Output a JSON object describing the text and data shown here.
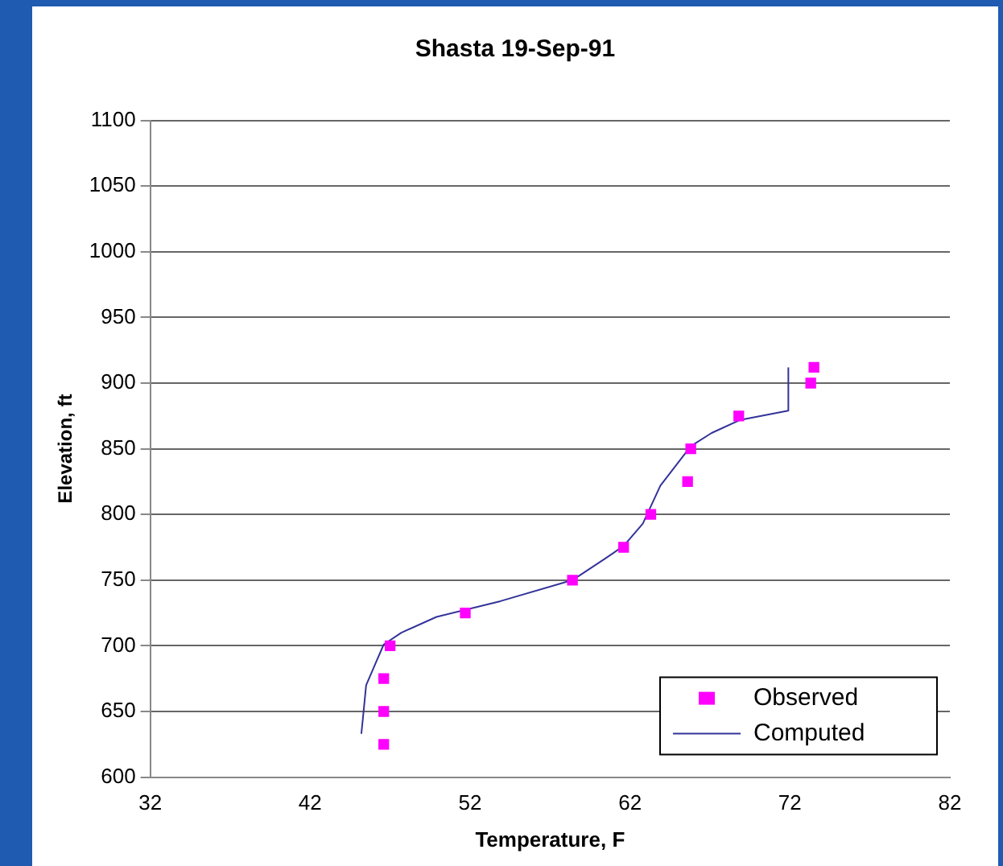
{
  "chart_data": {
    "type": "scatter",
    "title": "Shasta 19-Sep-91",
    "xlabel": "Temperature, F",
    "ylabel": "Elevation, ft",
    "xlim": [
      32,
      82
    ],
    "xticks": [
      32,
      42,
      52,
      62,
      72,
      82
    ],
    "ylim": [
      600,
      1100
    ],
    "yticks": [
      600,
      650,
      700,
      750,
      800,
      850,
      900,
      950,
      1000,
      1050,
      1100
    ],
    "grid": "y",
    "legend": "bottom right",
    "series": [
      {
        "name": "Observed",
        "marker": "square",
        "color": "#ff00ff",
        "x": [
          46.6,
          46.6,
          46.6,
          47.0,
          51.7,
          58.4,
          61.6,
          63.3,
          65.6,
          65.8,
          68.8,
          73.3,
          73.5
        ],
        "values": [
          625,
          650,
          675,
          700,
          725,
          750,
          775,
          800,
          825,
          850,
          875,
          900,
          912
        ]
      },
      {
        "name": "Computed",
        "type": "line",
        "marker": "none",
        "line_style": "solid",
        "color": "#333399",
        "x": [
          45.2,
          45.3,
          45.5,
          46.1,
          46.6,
          47.7,
          49.9,
          53.9,
          58.4,
          60.4,
          61.6,
          62.8,
          63.9,
          65.8,
          67.1,
          68.9,
          71.9,
          71.9
        ],
        "values": [
          633,
          645,
          670,
          687,
          701,
          710,
          722,
          734,
          750,
          766,
          776,
          793,
          822,
          852,
          862,
          872,
          879,
          912
        ]
      }
    ]
  }
}
